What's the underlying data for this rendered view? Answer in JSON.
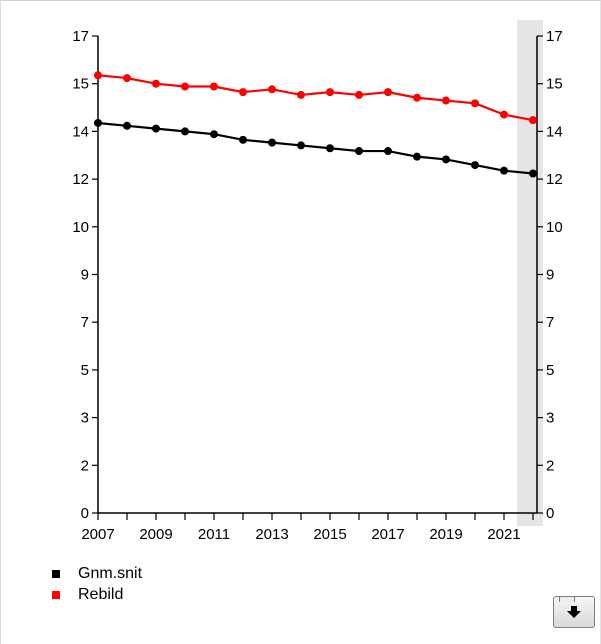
{
  "chart_data": {
    "type": "line",
    "x": [
      2007,
      2008,
      2009,
      2010,
      2011,
      2012,
      2013,
      2014,
      2015,
      2016,
      2017,
      2018,
      2019,
      2020,
      2021,
      2022
    ],
    "x_tick_labels": [
      "2007",
      "2009",
      "2011",
      "2013",
      "2015",
      "2017",
      "2019",
      "2021"
    ],
    "y_tick_labels": [
      "0",
      "2",
      "3",
      "5",
      "7",
      "9",
      "10",
      "12",
      "14",
      "15",
      "17"
    ],
    "ylim": [
      0,
      17
    ],
    "y_axis_left_and_right": true,
    "highlight_x": 2022,
    "grid": false,
    "legend_position": "bottom-left",
    "series": [
      {
        "name": "Gnm.snit",
        "color": "#000000",
        "values": [
          13.9,
          13.8,
          13.7,
          13.6,
          13.5,
          13.3,
          13.2,
          13.1,
          13.0,
          12.9,
          12.9,
          12.7,
          12.6,
          12.4,
          12.2,
          12.1
        ]
      },
      {
        "name": "Rebild",
        "color": "#ff0000",
        "values": [
          15.6,
          15.5,
          15.3,
          15.2,
          15.2,
          15.0,
          15.1,
          14.9,
          15.0,
          14.9,
          15.0,
          14.8,
          14.7,
          14.6,
          14.2,
          14.0
        ]
      }
    ]
  },
  "legend": {
    "items": [
      {
        "label": "Gnm.snit",
        "color": "#000000"
      },
      {
        "label": "Rebild",
        "color": "#ff0000"
      }
    ]
  },
  "toolbar": {
    "download_icon": "download-arrow-icon"
  },
  "colors": {
    "highlight_band": "#e5e5e5",
    "axis": "#000000"
  }
}
